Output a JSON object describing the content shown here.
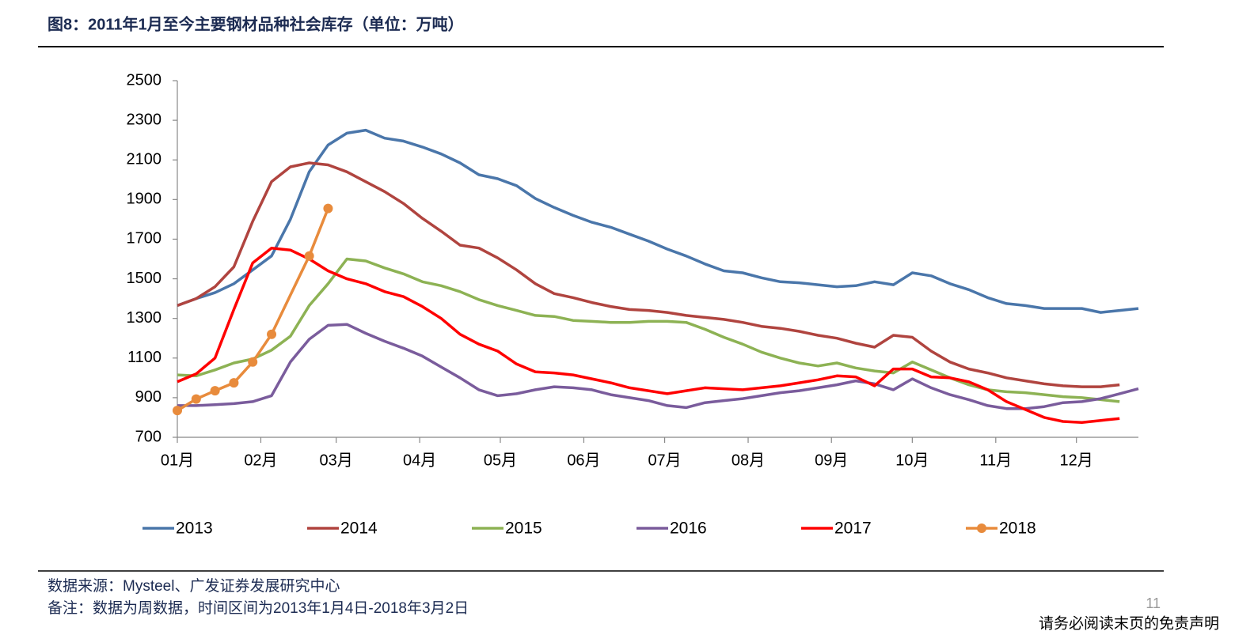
{
  "header": {
    "title": "图8：2011年1月至今主要钢材品种社会库存（单位：万吨）"
  },
  "chart_data": {
    "type": "line",
    "legend": "bottom",
    "grid": false,
    "x": [
      0,
      1,
      2,
      3,
      4,
      5,
      6,
      7,
      8,
      9,
      10,
      11,
      12,
      13,
      14,
      15,
      16,
      17,
      18,
      19,
      20,
      21,
      22,
      23,
      24,
      25,
      26,
      27,
      28,
      29,
      30,
      31,
      32,
      33,
      34,
      35,
      36,
      37,
      38,
      39,
      40,
      41,
      42,
      43,
      44,
      45,
      46,
      47,
      48,
      49,
      50,
      51
    ],
    "xlim": [
      0,
      51
    ],
    "xticks": [
      {
        "value": 0,
        "label": "01月"
      },
      {
        "value": 4.43,
        "label": "02月"
      },
      {
        "value": 8.43,
        "label": "03月"
      },
      {
        "value": 12.86,
        "label": "04月"
      },
      {
        "value": 17.14,
        "label": "05月"
      },
      {
        "value": 21.57,
        "label": "06月"
      },
      {
        "value": 25.86,
        "label": "07月"
      },
      {
        "value": 30.29,
        "label": "08月"
      },
      {
        "value": 34.71,
        "label": "09月"
      },
      {
        "value": 39,
        "label": "10月"
      },
      {
        "value": 43.43,
        "label": "11月"
      },
      {
        "value": 47.71,
        "label": "12月"
      }
    ],
    "ylim": [
      700,
      2500
    ],
    "yticks": [
      700,
      900,
      1100,
      1300,
      1500,
      1700,
      1900,
      2100,
      2300,
      2500
    ],
    "series": [
      {
        "name": "2013",
        "color": "#4a76aa",
        "values": [
          1365,
          1400,
          1430,
          1475,
          1545,
          1615,
          1800,
          2040,
          2175,
          2235,
          2250,
          2210,
          2195,
          2165,
          2130,
          2085,
          2025,
          2005,
          1970,
          1905,
          1860,
          1820,
          1785,
          1760,
          1725,
          1690,
          1650,
          1615,
          1575,
          1540,
          1530,
          1505,
          1485,
          1480,
          1470,
          1460,
          1465,
          1485,
          1470,
          1530,
          1515,
          1475,
          1445,
          1405,
          1375,
          1365,
          1350,
          1350,
          1350,
          1330,
          1340,
          1350
        ]
      },
      {
        "name": "2014",
        "color": "#b0443f",
        "values": [
          1365,
          1400,
          1460,
          1560,
          1790,
          1990,
          2065,
          2085,
          2075,
          2040,
          1990,
          1940,
          1880,
          1805,
          1740,
          1670,
          1655,
          1605,
          1545,
          1475,
          1425,
          1405,
          1380,
          1360,
          1345,
          1340,
          1330,
          1315,
          1305,
          1295,
          1280,
          1260,
          1250,
          1235,
          1215,
          1200,
          1175,
          1155,
          1215,
          1205,
          1135,
          1080,
          1045,
          1025,
          1000,
          985,
          970,
          960,
          955,
          955,
          965,
          null
        ]
      },
      {
        "name": "2015",
        "color": "#8db254",
        "values": [
          1015,
          1010,
          1040,
          1075,
          1095,
          1140,
          1210,
          1365,
          1475,
          1600,
          1590,
          1555,
          1525,
          1485,
          1465,
          1435,
          1395,
          1365,
          1340,
          1315,
          1310,
          1290,
          1285,
          1280,
          1280,
          1285,
          1285,
          1280,
          1245,
          1205,
          1170,
          1130,
          1100,
          1075,
          1060,
          1075,
          1050,
          1035,
          1025,
          1080,
          1040,
          1000,
          965,
          940,
          930,
          925,
          915,
          905,
          900,
          890,
          880,
          null
        ]
      },
      {
        "name": "2016",
        "color": "#7a5c9c",
        "values": [
          860,
          860,
          865,
          870,
          880,
          910,
          1080,
          1195,
          1265,
          1270,
          1225,
          1185,
          1150,
          1110,
          1055,
          1000,
          940,
          910,
          920,
          940,
          955,
          950,
          940,
          915,
          900,
          885,
          860,
          850,
          875,
          885,
          895,
          910,
          925,
          935,
          950,
          965,
          985,
          970,
          940,
          995,
          950,
          915,
          890,
          860,
          845,
          845,
          855,
          875,
          880,
          895,
          920,
          945
        ]
      },
      {
        "name": "2017",
        "color": "#ff0000",
        "values": [
          980,
          1020,
          1100,
          1345,
          1580,
          1655,
          1645,
          1600,
          1540,
          1500,
          1475,
          1435,
          1410,
          1360,
          1300,
          1220,
          1170,
          1135,
          1070,
          1030,
          1025,
          1015,
          995,
          975,
          950,
          935,
          920,
          935,
          950,
          945,
          940,
          950,
          960,
          975,
          990,
          1010,
          1005,
          960,
          1045,
          1045,
          1005,
          1000,
          980,
          940,
          880,
          840,
          800,
          780,
          775,
          785,
          795,
          null
        ]
      },
      {
        "name": "2018",
        "color": "#e88b3c",
        "marker": true,
        "x": [
          0,
          1,
          2,
          3,
          4,
          5,
          7,
          8
        ],
        "values": [
          835,
          893,
          935,
          975,
          1080,
          1220,
          1615,
          1855
        ]
      }
    ]
  },
  "footer": {
    "source": "数据来源：Mysteel、广发证券发展研究中心",
    "note": "备注：数据为周数据，时间区间为2013年1月4日-2018年3月2日",
    "page": "11",
    "disclaimer": "请务必阅读末页的免责声明"
  }
}
